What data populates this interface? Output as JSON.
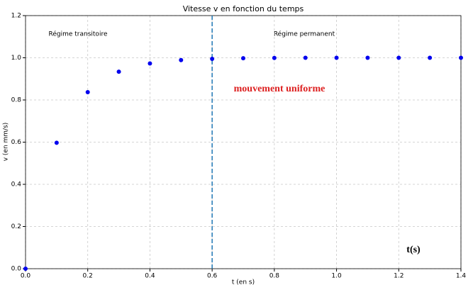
{
  "chart_data": {
    "type": "scatter",
    "title": "Vitesse v en fonction du temps",
    "x_label": "t (en s)",
    "y_label": "v (en mm/s)",
    "annotations": [
      "Régime transitoire",
      "Régime permanent",
      "mouvement uniforme",
      "t(s)"
    ],
    "vline": 0.6,
    "x": [
      0.0,
      0.1,
      0.2,
      0.3,
      0.4,
      0.5,
      0.6,
      0.7,
      0.8,
      0.9,
      1.0,
      1.1,
      1.2,
      1.3,
      1.4
    ],
    "values": [
      0.0,
      0.597,
      0.837,
      0.934,
      0.973,
      0.989,
      0.995,
      0.998,
      0.999,
      1.0,
      1.0,
      1.0,
      1.0,
      1.0,
      1.0
    ],
    "color": "#0000ee",
    "xlim": [
      0.0,
      1.4
    ],
    "ylim": [
      0.0,
      1.2
    ],
    "xticks": [
      {
        "value": 0.0,
        "label": "0.0"
      },
      {
        "value": 0.2,
        "label": "0.2"
      },
      {
        "value": 0.4,
        "label": "0.4"
      },
      {
        "value": 0.6,
        "label": "0.6"
      },
      {
        "value": 0.8,
        "label": "0.8"
      },
      {
        "value": 1.0,
        "label": "1.0"
      },
      {
        "value": 1.2,
        "label": "1.2"
      },
      {
        "value": 1.4,
        "label": "1.4"
      }
    ],
    "yticks": [
      {
        "value": 0.0,
        "label": "0.0"
      },
      {
        "value": 0.2,
        "label": "0.2"
      },
      {
        "value": 0.4,
        "label": "0.4"
      },
      {
        "value": 0.6,
        "label": "0.6"
      },
      {
        "value": 0.8,
        "label": "0.8"
      },
      {
        "value": 1.0,
        "label": "1.0"
      },
      {
        "value": 1.2,
        "label": "1.2"
      }
    ],
    "grid": true
  }
}
